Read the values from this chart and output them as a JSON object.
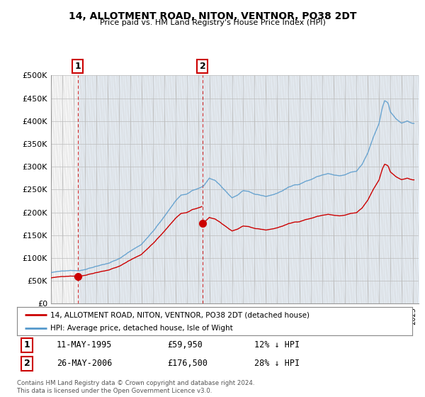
{
  "title": "14, ALLOTMENT ROAD, NITON, VENTNOR, PO38 2DT",
  "subtitle": "Price paid vs. HM Land Registry's House Price Index (HPI)",
  "legend_line1": "14, ALLOTMENT ROAD, NITON, VENTNOR, PO38 2DT (detached house)",
  "legend_line2": "HPI: Average price, detached house, Isle of Wight",
  "annotation1_label": "1",
  "annotation1_date": "11-MAY-1995",
  "annotation1_price": "£59,950",
  "annotation1_hpi": "12% ↓ HPI",
  "annotation2_label": "2",
  "annotation2_date": "26-MAY-2006",
  "annotation2_price": "£176,500",
  "annotation2_hpi": "28% ↓ HPI",
  "footnote": "Contains HM Land Registry data © Crown copyright and database right 2024.\nThis data is licensed under the Open Government Licence v3.0.",
  "price_paid_color": "#cc0000",
  "hpi_color": "#5599cc",
  "ylim": [
    0,
    500000
  ],
  "yticks": [
    0,
    50000,
    100000,
    150000,
    200000,
    250000,
    300000,
    350000,
    400000,
    450000,
    500000
  ],
  "ytick_labels": [
    "£0",
    "£50K",
    "£100K",
    "£150K",
    "£200K",
    "£250K",
    "£300K",
    "£350K",
    "£400K",
    "£450K",
    "£500K"
  ],
  "sale1_year": 1995.37,
  "sale1_price": 59950,
  "sale2_year": 2006.4,
  "sale2_price": 176500,
  "xmin": 1993.0,
  "xmax": 2025.5
}
